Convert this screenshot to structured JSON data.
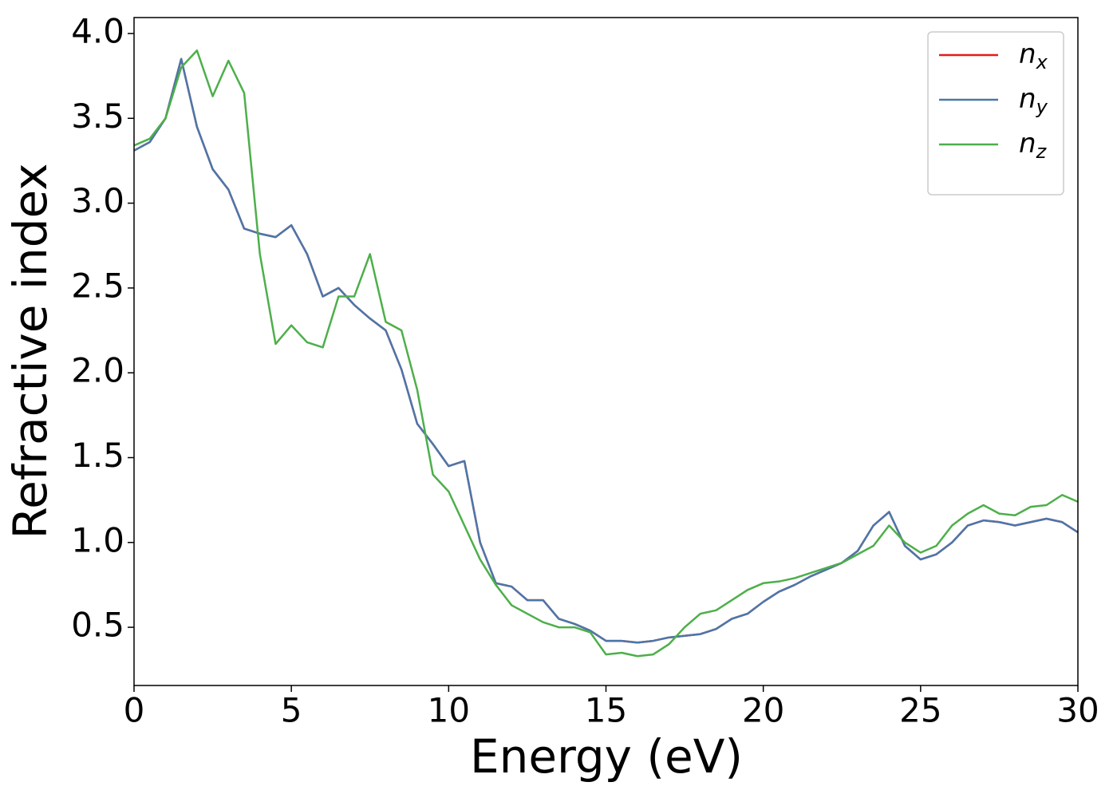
{
  "chart_data": {
    "type": "line",
    "x_label": "Energy (eV)",
    "y_label": "Refractive index",
    "x": [
      0,
      0.5,
      1,
      1.5,
      2,
      2.5,
      3,
      3.5,
      4,
      4.5,
      5,
      5.5,
      6,
      6.5,
      7,
      7.5,
      8,
      8.5,
      9,
      9.5,
      10,
      10.5,
      11,
      11.5,
      12,
      12.5,
      13,
      13.5,
      14,
      14.5,
      15,
      15.5,
      16,
      16.5,
      17,
      17.5,
      18,
      18.5,
      19,
      19.5,
      20,
      20.5,
      21,
      21.5,
      22,
      22.5,
      23,
      23.5,
      24,
      24.5,
      25,
      25.5,
      26,
      26.5,
      27,
      27.5,
      28,
      28.5,
      29,
      29.5,
      30
    ],
    "series": [
      {
        "name": "nx",
        "color": "#e41a1c",
        "values": [
          3.31,
          3.36,
          3.5,
          3.85,
          3.45,
          3.2,
          3.08,
          2.85,
          2.82,
          2.8,
          2.87,
          2.7,
          2.45,
          2.5,
          2.4,
          2.32,
          2.25,
          2.02,
          1.7,
          1.58,
          1.45,
          1.48,
          1.0,
          0.76,
          0.74,
          0.66,
          0.66,
          0.55,
          0.52,
          0.48,
          0.42,
          0.42,
          0.41,
          0.42,
          0.44,
          0.45,
          0.46,
          0.49,
          0.55,
          0.58,
          0.65,
          0.71,
          0.75,
          0.8,
          0.84,
          0.88,
          0.95,
          1.1,
          1.18,
          0.98,
          0.9,
          0.93,
          1.0,
          1.1,
          1.13,
          1.12,
          1.1,
          1.12,
          1.14,
          1.12,
          1.06
        ]
      },
      {
        "name": "ny",
        "color": "#4a77aa",
        "values": [
          3.31,
          3.36,
          3.5,
          3.85,
          3.45,
          3.2,
          3.08,
          2.85,
          2.82,
          2.8,
          2.87,
          2.7,
          2.45,
          2.5,
          2.4,
          2.32,
          2.25,
          2.02,
          1.7,
          1.58,
          1.45,
          1.48,
          1.0,
          0.76,
          0.74,
          0.66,
          0.66,
          0.55,
          0.52,
          0.48,
          0.42,
          0.42,
          0.41,
          0.42,
          0.44,
          0.45,
          0.46,
          0.49,
          0.55,
          0.58,
          0.65,
          0.71,
          0.75,
          0.8,
          0.84,
          0.88,
          0.95,
          1.1,
          1.18,
          0.98,
          0.9,
          0.93,
          1.0,
          1.1,
          1.13,
          1.12,
          1.1,
          1.12,
          1.14,
          1.12,
          1.06
        ]
      },
      {
        "name": "nz",
        "color": "#4daf4a",
        "values": [
          3.34,
          3.38,
          3.5,
          3.8,
          3.9,
          3.63,
          3.84,
          3.65,
          2.7,
          2.17,
          2.28,
          2.18,
          2.15,
          2.45,
          2.45,
          2.7,
          2.3,
          2.25,
          1.9,
          1.4,
          1.3,
          1.1,
          0.9,
          0.75,
          0.63,
          0.58,
          0.53,
          0.5,
          0.5,
          0.47,
          0.34,
          0.35,
          0.33,
          0.34,
          0.4,
          0.5,
          0.58,
          0.6,
          0.66,
          0.72,
          0.76,
          0.77,
          0.79,
          0.82,
          0.85,
          0.88,
          0.93,
          0.98,
          1.1,
          1.0,
          0.94,
          0.98,
          1.1,
          1.17,
          1.22,
          1.17,
          1.16,
          1.21,
          1.22,
          1.28,
          1.24
        ]
      }
    ],
    "xlim": [
      0,
      30
    ],
    "xticks": [
      0,
      5,
      10,
      15,
      20,
      25,
      30
    ],
    "ylim": [
      0.157,
      4.094
    ],
    "yticks": [
      0.5,
      {
        "value": 1,
        "label": "1.0"
      },
      1.5,
      {
        "value": 2,
        "label": "2.0"
      },
      2.5,
      {
        "value": 3,
        "label": "3.0"
      },
      3.5,
      {
        "value": 4,
        "label": "4.0"
      }
    ],
    "grid": false,
    "legend": "upper right"
  }
}
